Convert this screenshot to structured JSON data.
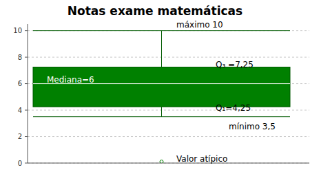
{
  "chart_data": {
    "type": "box",
    "title": "Notas exame matemáticas",
    "box": {
      "min": 3.5,
      "q1": 4.25,
      "median": 6,
      "q3": 7.25,
      "max": 10
    },
    "outliers": [
      0.1
    ],
    "annotations": [
      "máximo 10",
      "Q₃ =7,25",
      "Mediana=6",
      "Q₁=4,25",
      "mínimo 3,5",
      "Valor atípico"
    ],
    "ylim": [
      0,
      10.5
    ],
    "yticks": [
      0,
      2,
      4,
      6,
      8,
      10
    ],
    "grid": true,
    "color": "#008000",
    "tick_labels": "y"
  }
}
